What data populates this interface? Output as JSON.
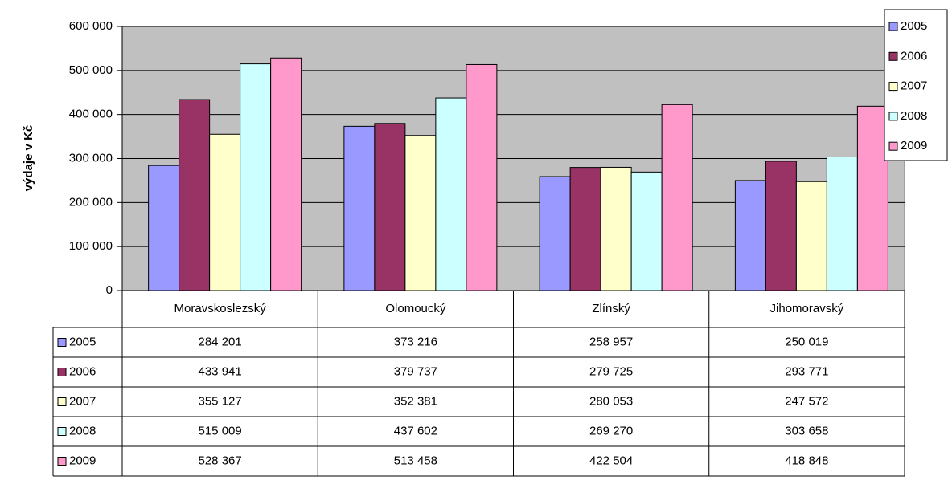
{
  "chart_data": {
    "type": "bar",
    "y_axis_label": "výdaje v Kč",
    "categories": [
      "Moravskoslezský",
      "Olomoucký",
      "Zlínský",
      "Jihomoravský"
    ],
    "series": [
      {
        "name": "2005",
        "color": "#9999ff",
        "values": [
          284201,
          373216,
          258957,
          250019
        ],
        "value_labels": [
          "284 201",
          "373 216",
          "258 957",
          "250 019"
        ]
      },
      {
        "name": "2006",
        "color": "#993366",
        "values": [
          433941,
          379737,
          279725,
          293771
        ],
        "value_labels": [
          "433 941",
          "379 737",
          "279 725",
          "293 771"
        ]
      },
      {
        "name": "2007",
        "color": "#ffffcc",
        "values": [
          355127,
          352381,
          280053,
          247572
        ],
        "value_labels": [
          "355 127",
          "352 381",
          "280 053",
          "247 572"
        ]
      },
      {
        "name": "2008",
        "color": "#ccffff",
        "values": [
          515009,
          437602,
          269270,
          303658
        ],
        "value_labels": [
          "515 009",
          "437 602",
          "269 270",
          "303 658"
        ]
      },
      {
        "name": "2009",
        "color": "#ff99cc",
        "values": [
          528367,
          513458,
          422504,
          418848
        ],
        "value_labels": [
          "528 367",
          "513 458",
          "422 504",
          "418 848"
        ]
      }
    ],
    "ylim": [
      0,
      600000
    ],
    "yticks": [
      0,
      {
        "value": 100000,
        "label": "100 000"
      },
      {
        "value": 200000,
        "label": "200 000"
      },
      {
        "value": 300000,
        "label": "300 000"
      },
      {
        "value": 400000,
        "label": "400 000"
      },
      {
        "value": 500000,
        "label": "500 000"
      },
      {
        "value": 600000,
        "label": "600 000"
      }
    ],
    "grid": true,
    "plot_background": "#c0c0c0",
    "legend": "top-right",
    "data_table": true
  }
}
